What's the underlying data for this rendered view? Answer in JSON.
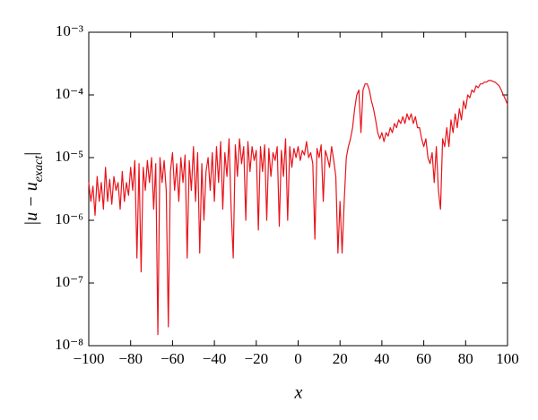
{
  "chart_data": {
    "type": "line",
    "xlabel": "x",
    "ylabel": "|u − u_exact|",
    "log_y": true,
    "grid": false,
    "xlim": [
      -100,
      100
    ],
    "ylim": [
      1e-08,
      0.001
    ],
    "xticks": [
      {
        "value": -100,
        "label": "−100"
      },
      {
        "value": -80,
        "label": "−80"
      },
      {
        "value": -60,
        "label": "−60"
      },
      {
        "value": -40,
        "label": "−40"
      },
      {
        "value": -20,
        "label": "−20"
      },
      0,
      20,
      40,
      60,
      80,
      100
    ],
    "yticks": [
      {
        "value": 1e-08,
        "label": "10⁻⁸"
      },
      {
        "value": 1e-07,
        "label": "10⁻⁷"
      },
      {
        "value": 1e-06,
        "label": "10⁻⁶"
      },
      {
        "value": 1e-05,
        "label": "10⁻⁵"
      },
      {
        "value": 0.0001,
        "label": "10⁻⁴"
      },
      {
        "value": 0.001,
        "label": "10⁻³"
      }
    ],
    "x": [
      -100,
      -99,
      -98,
      -97,
      -96,
      -95,
      -94,
      -93,
      -92,
      -91,
      -90,
      -89,
      -88,
      -87,
      -86,
      -85,
      -84,
      -83,
      -82,
      -81,
      -80,
      -79,
      -78,
      -77,
      -76,
      -75,
      -74,
      -73,
      -72,
      -71,
      -70,
      -69,
      -68,
      -67,
      -66,
      -65,
      -64,
      -63,
      -62,
      -61,
      -60,
      -59,
      -58,
      -57,
      -56,
      -55,
      -54,
      -53,
      -52,
      -51,
      -50,
      -49,
      -48,
      -47,
      -46,
      -45,
      -44,
      -43,
      -42,
      -41,
      -40,
      -39,
      -38,
      -37,
      -36,
      -35,
      -34,
      -33,
      -32,
      -31,
      -30,
      -29,
      -28,
      -27,
      -26,
      -25,
      -24,
      -23,
      -22,
      -21,
      -20,
      -19,
      -18,
      -17,
      -16,
      -15,
      -14,
      -13,
      -12,
      -11,
      -10,
      -9,
      -8,
      -7,
      -6,
      -5,
      -4,
      -3,
      -2,
      -1,
      0,
      1,
      2,
      3,
      4,
      5,
      6,
      7,
      8,
      9,
      10,
      11,
      12,
      13,
      14,
      15,
      16,
      17,
      18,
      19,
      20,
      21,
      22,
      23,
      24,
      25,
      26,
      27,
      28,
      29,
      30,
      31,
      32,
      33,
      34,
      35,
      36,
      37,
      38,
      39,
      40,
      41,
      42,
      43,
      44,
      45,
      46,
      47,
      48,
      49,
      50,
      51,
      52,
      53,
      54,
      55,
      56,
      57,
      58,
      59,
      60,
      61,
      62,
      63,
      64,
      65,
      66,
      67,
      68,
      69,
      70,
      71,
      72,
      73,
      74,
      75,
      76,
      77,
      78,
      79,
      80,
      81,
      82,
      83,
      84,
      85,
      86,
      87,
      88,
      89,
      90,
      91,
      92,
      93,
      94,
      95,
      96,
      97,
      98,
      99,
      100
    ],
    "series": [
      {
        "color": "#e8141b",
        "values": [
          4e-06,
          2e-06,
          3.5e-06,
          1.2e-06,
          5e-06,
          2e-06,
          4e-06,
          1.5e-06,
          7e-06,
          2e-06,
          4.5e-06,
          1.8e-06,
          5e-06,
          3e-06,
          4e-06,
          1.5e-06,
          6e-06,
          2e-06,
          4e-06,
          2.5e-06,
          7e-06,
          3e-06,
          9e-06,
          2.5e-07,
          8e-06,
          1.5e-07,
          7e-06,
          3e-06,
          9e-06,
          4e-06,
          1e-05,
          1.5e-06,
          8e-06,
          1.5e-08,
          1e-05,
          4e-06,
          9e-06,
          3e-06,
          2e-08,
          6e-06,
          1.2e-05,
          3e-06,
          8e-06,
          2e-06,
          1e-05,
          4e-06,
          1.1e-05,
          2.5e-07,
          9e-06,
          3e-06,
          1.5e-05,
          2e-06,
          1.2e-05,
          3e-07,
          8e-06,
          1e-06,
          6e-06,
          1e-05,
          3e-06,
          1.2e-05,
          2e-06,
          1.5e-05,
          4e-06,
          1.8e-05,
          1.5e-06,
          1.2e-05,
          5e-06,
          2e-05,
          1.5e-06,
          2.5e-07,
          1.6e-05,
          5e-06,
          2e-05,
          8e-06,
          1.5e-05,
          1e-06,
          1.8e-05,
          6e-06,
          1.5e-05,
          9e-06,
          1.3e-05,
          7e-07,
          1.5e-05,
          6e-06,
          1.6e-05,
          1e-06,
          1.4e-05,
          5e-06,
          1.2e-05,
          9e-06,
          1.5e-05,
          8e-07,
          1.3e-05,
          5e-06,
          2e-05,
          1e-06,
          1.5e-05,
          7e-06,
          1.4e-05,
          1e-05,
          1.5e-05,
          9e-06,
          1.3e-05,
          1.1e-05,
          1.8e-05,
          1e-05,
          1.2e-05,
          8e-06,
          5e-07,
          1.4e-05,
          1e-05,
          1.6e-05,
          2e-06,
          1.3e-05,
          1e-05,
          7e-06,
          1.5e-05,
          9e-06,
          5e-06,
          3e-07,
          2e-06,
          3e-07,
          2e-06,
          1e-05,
          1.5e-05,
          2e-05,
          3e-05,
          6e-05,
          0.0001,
          0.00012,
          2.5e-05,
          0.00012,
          0.00015,
          0.00015,
          0.00012,
          8e-05,
          6e-05,
          4e-05,
          2.5e-05,
          2e-05,
          2.5e-05,
          1.8e-05,
          2.5e-05,
          2.2e-05,
          3e-05,
          2.5e-05,
          3.5e-05,
          3e-05,
          4e-05,
          3.5e-05,
          4.5e-05,
          3.5e-05,
          5e-05,
          4e-05,
          5e-05,
          3.5e-05,
          4.5e-05,
          3e-05,
          3e-05,
          2e-05,
          1.5e-05,
          2e-05,
          1e-05,
          8e-06,
          1.2e-05,
          4e-06,
          1.5e-05,
          3e-06,
          1.5e-06,
          2e-05,
          1.5e-05,
          3e-05,
          1.5e-05,
          4e-05,
          2.5e-05,
          5e-05,
          3e-05,
          6e-05,
          4e-05,
          8e-05,
          6e-05,
          0.0001,
          9e-05,
          0.00012,
          0.00011,
          0.00014,
          0.00013,
          0.00015,
          0.00015,
          0.00016,
          0.00016,
          0.00017,
          0.00017,
          0.000165,
          0.00016,
          0.00015,
          0.00014,
          0.00012,
          0.0001,
          8.5e-05,
          7e-05
        ]
      }
    ]
  }
}
